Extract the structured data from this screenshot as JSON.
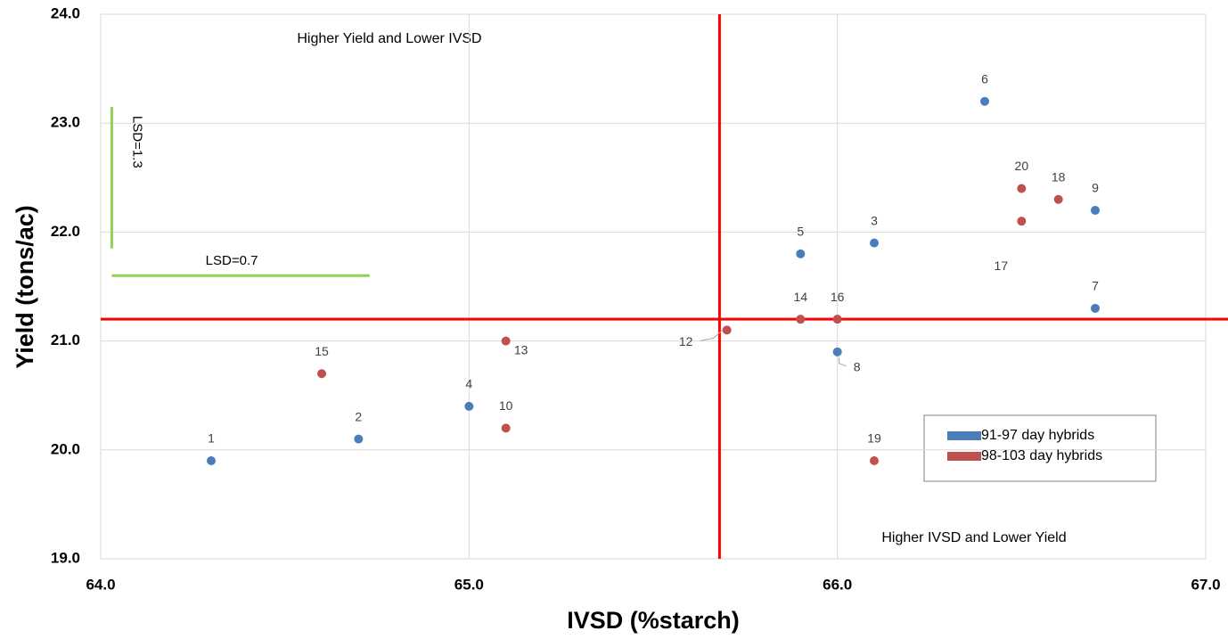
{
  "chart_data": {
    "type": "scatter",
    "xlabel": "IVSD (%starch)",
    "ylabel": "Yield (tons/ac)",
    "xlim": [
      64,
      67
    ],
    "xticks": [
      {
        "value": 64,
        "label": "64.0"
      },
      {
        "value": 65,
        "label": "65.0"
      },
      {
        "value": 66,
        "label": "66.0"
      },
      {
        "value": 67,
        "label": "67.0"
      }
    ],
    "ylim": [
      19,
      24
    ],
    "yticks": [
      {
        "value": 19,
        "label": "19.0"
      },
      {
        "value": 20,
        "label": "20.0"
      },
      {
        "value": 21,
        "label": "21.0"
      },
      {
        "value": 22,
        "label": "22.0"
      },
      {
        "value": 23,
        "label": "23.0"
      },
      {
        "value": 24,
        "label": "24.0"
      }
    ],
    "grid": true,
    "series": [
      {
        "name": "91-97 day hybrids",
        "color": "#4a7ebb",
        "labels": [
          "1",
          "2",
          "4",
          "5",
          "3",
          "6",
          "9",
          "7",
          "8"
        ],
        "x": [
          64.3,
          64.7,
          65.0,
          65.9,
          66.1,
          66.4,
          66.7,
          66.7,
          66.0
        ],
        "values": [
          19.9,
          20.1,
          20.4,
          21.8,
          21.9,
          23.2,
          22.2,
          21.3,
          20.9
        ]
      },
      {
        "name": "98-103 day hybrids",
        "color": "#c0504d",
        "labels": [
          "15",
          "10",
          "13",
          "12",
          "14",
          "16",
          "19",
          "20",
          "17",
          "18"
        ],
        "x": [
          64.6,
          65.1,
          65.1,
          65.7,
          65.9,
          66.0,
          66.1,
          66.5,
          66.5,
          66.6
        ],
        "values": [
          20.7,
          20.2,
          21.0,
          21.1,
          21.2,
          21.2,
          19.9,
          22.4,
          22.1,
          22.3
        ]
      }
    ],
    "reference_lines": [
      {
        "axis": "x",
        "value": 65.68,
        "color": "#ff0000"
      },
      {
        "axis": "y",
        "value": 21.2,
        "color": "#ff0000"
      }
    ],
    "lsd_bars": [
      {
        "label": "LSD=1.3",
        "x": 64.03,
        "y": [
          21.85,
          23.15
        ],
        "color": "#92d050"
      },
      {
        "label": "LSD=0.7",
        "y": 21.6,
        "x": [
          64.03,
          64.73
        ],
        "color": "#92d050"
      }
    ],
    "annotations": [
      "Higher Yield and Lower IVSD",
      "Higher IVSD and Lower Yield"
    ],
    "legend": "lower right"
  }
}
